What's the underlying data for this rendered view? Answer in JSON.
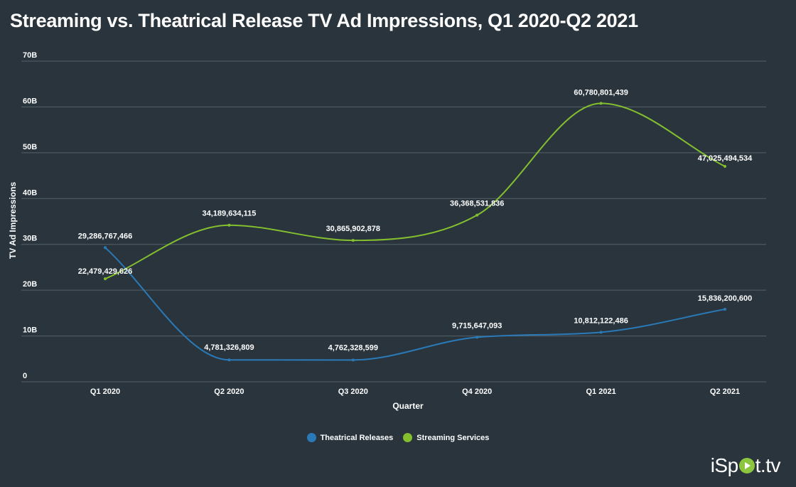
{
  "chart_data": {
    "type": "line",
    "title": "Streaming vs. Theatrical Release TV Ad Impressions, Q1 2020-Q2 2021",
    "xlabel": "Quarter",
    "ylabel": "TV Ad Impressions",
    "categories": [
      "Q1 2020",
      "Q2 2020",
      "Q3 2020",
      "Q4 2020",
      "Q1 2021",
      "Q2 2021"
    ],
    "ylim": [
      0,
      70000000000
    ],
    "yticks": [
      0,
      10000000000,
      20000000000,
      30000000000,
      40000000000,
      50000000000,
      60000000000,
      70000000000
    ],
    "ytick_labels": [
      "0",
      "10B",
      "20B",
      "30B",
      "40B",
      "50B",
      "60B",
      "70B"
    ],
    "grid": true,
    "legend_position": "bottom",
    "series": [
      {
        "name": "Theatrical Releases",
        "color": "#2a7ab8",
        "values": [
          29286767466,
          4781326809,
          4762328599,
          9715647093,
          10812122486,
          15836200600
        ],
        "labels": [
          "29,286,767,466",
          "4,781,326,809",
          "4,762,328,599",
          "9,715,647,093",
          "10,812,122,486",
          "15,836,200,600"
        ]
      },
      {
        "name": "Streaming Services",
        "color": "#84bf2e",
        "values": [
          22479429626,
          34189634115,
          30865902878,
          36368531836,
          60780801439,
          47025494534
        ],
        "labels": [
          "22,479,429,626",
          "34,189,634,115",
          "30,865,902,878",
          "36,368,531,836",
          "60,780,801,439",
          "47,025,494,534"
        ]
      }
    ]
  },
  "brand": {
    "pre": "iSp",
    "post": "t.tv"
  }
}
